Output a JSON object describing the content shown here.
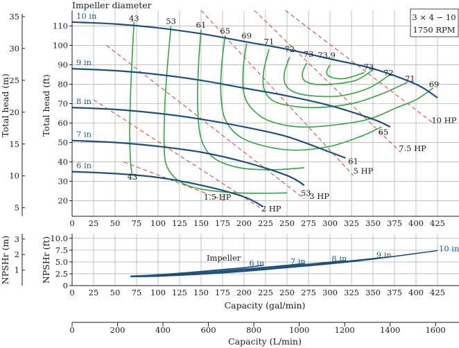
{
  "chart_data": [
    {
      "type": "line",
      "title": "Impeller diameter",
      "annotation": [
        "3 × 4 − 10",
        "1750 RPM"
      ],
      "xlabel": "",
      "ylabel_left": "Total head (m)",
      "ylabel_right": "Total head (ft)",
      "xlim": [
        0,
        450
      ],
      "ylim_ft": [
        12,
        118
      ],
      "ylim_m": [
        3.66,
        35.97
      ],
      "x_ticks": [
        0,
        25,
        50,
        75,
        100,
        125,
        150,
        175,
        200,
        225,
        250,
        275,
        300,
        325,
        350,
        375,
        400,
        425
      ],
      "y_ticks_ft": [
        20,
        30,
        40,
        50,
        60,
        70,
        80,
        90,
        100,
        110
      ],
      "y_ticks_m": [
        5,
        10,
        15,
        20,
        25,
        30,
        35
      ],
      "grid": true,
      "impeller_curves": [
        {
          "name": "10 in",
          "x": [
            0,
            50,
            100,
            150,
            200,
            250,
            300,
            350,
            400,
            425
          ],
          "y": [
            112,
            111,
            109,
            106,
            102,
            98,
            93,
            88,
            80,
            73
          ]
        },
        {
          "name": "9 in",
          "x": [
            0,
            50,
            100,
            150,
            200,
            250,
            300,
            350,
            370
          ],
          "y": [
            88,
            87,
            85,
            82,
            78,
            74,
            69,
            62,
            58
          ]
        },
        {
          "name": "8 in",
          "x": [
            0,
            50,
            100,
            150,
            200,
            250,
            300,
            318
          ],
          "y": [
            68,
            67,
            65,
            62,
            58,
            53,
            45,
            42
          ]
        },
        {
          "name": "7 in",
          "x": [
            0,
            50,
            100,
            150,
            200,
            250,
            270
          ],
          "y": [
            51,
            50,
            48,
            45,
            40,
            33,
            28
          ]
        },
        {
          "name": "6 in",
          "x": [
            0,
            50,
            100,
            150,
            200,
            222
          ],
          "y": [
            35,
            34,
            32,
            28,
            22,
            17
          ]
        }
      ],
      "efficiency_labels": [
        "43",
        "53",
        "61",
        "65",
        "69",
        "71",
        "72",
        "73",
        "73.9",
        "73",
        "72",
        "71",
        "69",
        "65",
        "61",
        "53",
        "43"
      ],
      "efficiency_curves": [
        {
          "name": "43",
          "x": [
            72,
            70,
            68,
            67,
            68,
            70
          ],
          "y": [
            112,
            95,
            75,
            55,
            40,
            33
          ]
        },
        {
          "name": "53",
          "x": [
            115,
            111,
            108,
            107,
            110,
            125,
            150,
            195,
            250
          ],
          "y": [
            110,
            90,
            70,
            50,
            38,
            30,
            26,
            24,
            24
          ]
        },
        {
          "name": "61",
          "x": [
            150,
            147,
            146,
            150,
            165,
            195,
            235,
            270
          ],
          "y": [
            108,
            90,
            70,
            52,
            42,
            37,
            36,
            37
          ]
        },
        {
          "name": "65",
          "x": [
            178,
            174,
            173,
            178,
            195,
            225,
            260,
            300,
            335,
            360
          ],
          "y": [
            105,
            90,
            75,
            62,
            53,
            48,
            46,
            48,
            53,
            58
          ]
        },
        {
          "name": "69",
          "x": [
            203,
            199,
            200,
            210,
            230,
            265,
            305,
            345,
            378,
            400,
            420
          ],
          "y": [
            101,
            88,
            75,
            67,
            61,
            58,
            59,
            62,
            68,
            72,
            78
          ]
        },
        {
          "name": "71",
          "x": [
            229,
            223,
            223,
            232,
            252,
            285,
            325,
            360,
            390
          ],
          "y": [
            98,
            87,
            78,
            72,
            69,
            68,
            70,
            75,
            81
          ]
        },
        {
          "name": "72",
          "x": [
            253,
            247,
            248,
            258,
            280,
            312,
            345,
            370
          ],
          "y": [
            94,
            86,
            80,
            76,
            74,
            74,
            78,
            85
          ]
        },
        {
          "name": "73",
          "x": [
            273,
            268,
            270,
            282,
            302,
            330,
            352
          ],
          "y": [
            91,
            86,
            82,
            80,
            80,
            82,
            88
          ]
        },
        {
          "name": "73.9",
          "x": [
            300,
            296,
            302,
            318,
            340
          ],
          "y": [
            90,
            86,
            83.5,
            83,
            86
          ]
        }
      ],
      "power_curves": [
        {
          "name": "10 HP",
          "x": [
            248,
            420
          ],
          "y": [
            118,
            60
          ]
        },
        {
          "name": "7.5 HP",
          "x": [
            212,
            382
          ],
          "y": [
            118,
            45
          ]
        },
        {
          "name": "5 HP",
          "x": [
            150,
            327
          ],
          "y": [
            118,
            33
          ]
        },
        {
          "name": "3 HP",
          "x": [
            40,
            270
          ],
          "y": [
            100,
            21
          ]
        },
        {
          "name": "2 HP",
          "x": [
            25,
            220
          ],
          "y": [
            72,
            16
          ]
        },
        {
          "name": "1.5 HP",
          "x": [
            60,
            178
          ],
          "y": [
            40,
            20
          ]
        }
      ],
      "power_labels": [
        "10 HP",
        "7.5 HP",
        "5 HP",
        "3 HP",
        "2 HP",
        "1.5 HP"
      ]
    },
    {
      "type": "line",
      "xlabel": "Capacity (gal/min)",
      "ylabel_left": "NPSHr (m)",
      "ylabel_right": "NPSHr (ft)",
      "xlim": [
        0,
        450
      ],
      "ylim_ft": [
        0,
        11
      ],
      "ylim_m": [
        0,
        3.35
      ],
      "x_ticks": [
        0,
        25,
        50,
        75,
        100,
        125,
        150,
        175,
        200,
        225,
        250,
        275,
        300,
        325,
        350,
        375,
        400,
        425
      ],
      "y_ticks_ft": [
        0,
        2.5,
        5.0,
        7.5,
        10.0
      ],
      "y_ticks_m": [
        1,
        2,
        3
      ],
      "series_label_prefix": "Impeller",
      "series": [
        {
          "name": "6 in",
          "x": [
            68,
            100,
            150,
            200,
            222
          ],
          "y": [
            2.0,
            2.3,
            3.0,
            3.8,
            4.3
          ]
        },
        {
          "name": "7 in",
          "x": [
            68,
            100,
            150,
            200,
            250,
            270
          ],
          "y": [
            2.0,
            2.2,
            2.8,
            3.5,
            4.3,
            4.7
          ]
        },
        {
          "name": "8 in",
          "x": [
            68,
            100,
            150,
            200,
            250,
            318
          ],
          "y": [
            2.0,
            2.1,
            2.6,
            3.3,
            4.1,
            5.3
          ]
        },
        {
          "name": "9 in",
          "x": [
            68,
            100,
            150,
            200,
            250,
            300,
            370
          ],
          "y": [
            1.9,
            2.0,
            2.5,
            3.1,
            3.9,
            4.8,
            6.1
          ]
        },
        {
          "name": "10 in",
          "x": [
            68,
            100,
            150,
            200,
            250,
            300,
            350,
            425
          ],
          "y": [
            1.9,
            2.0,
            2.4,
            3.0,
            3.8,
            4.6,
            5.6,
            7.4
          ]
        }
      ]
    },
    {
      "type": "axis",
      "xlabel": "Capacity (L/min)",
      "xlim_Lmin": [
        0,
        1703.4
      ],
      "x_ticks": [
        0,
        200,
        400,
        600,
        800,
        1000,
        1200,
        1400,
        1600
      ]
    }
  ]
}
